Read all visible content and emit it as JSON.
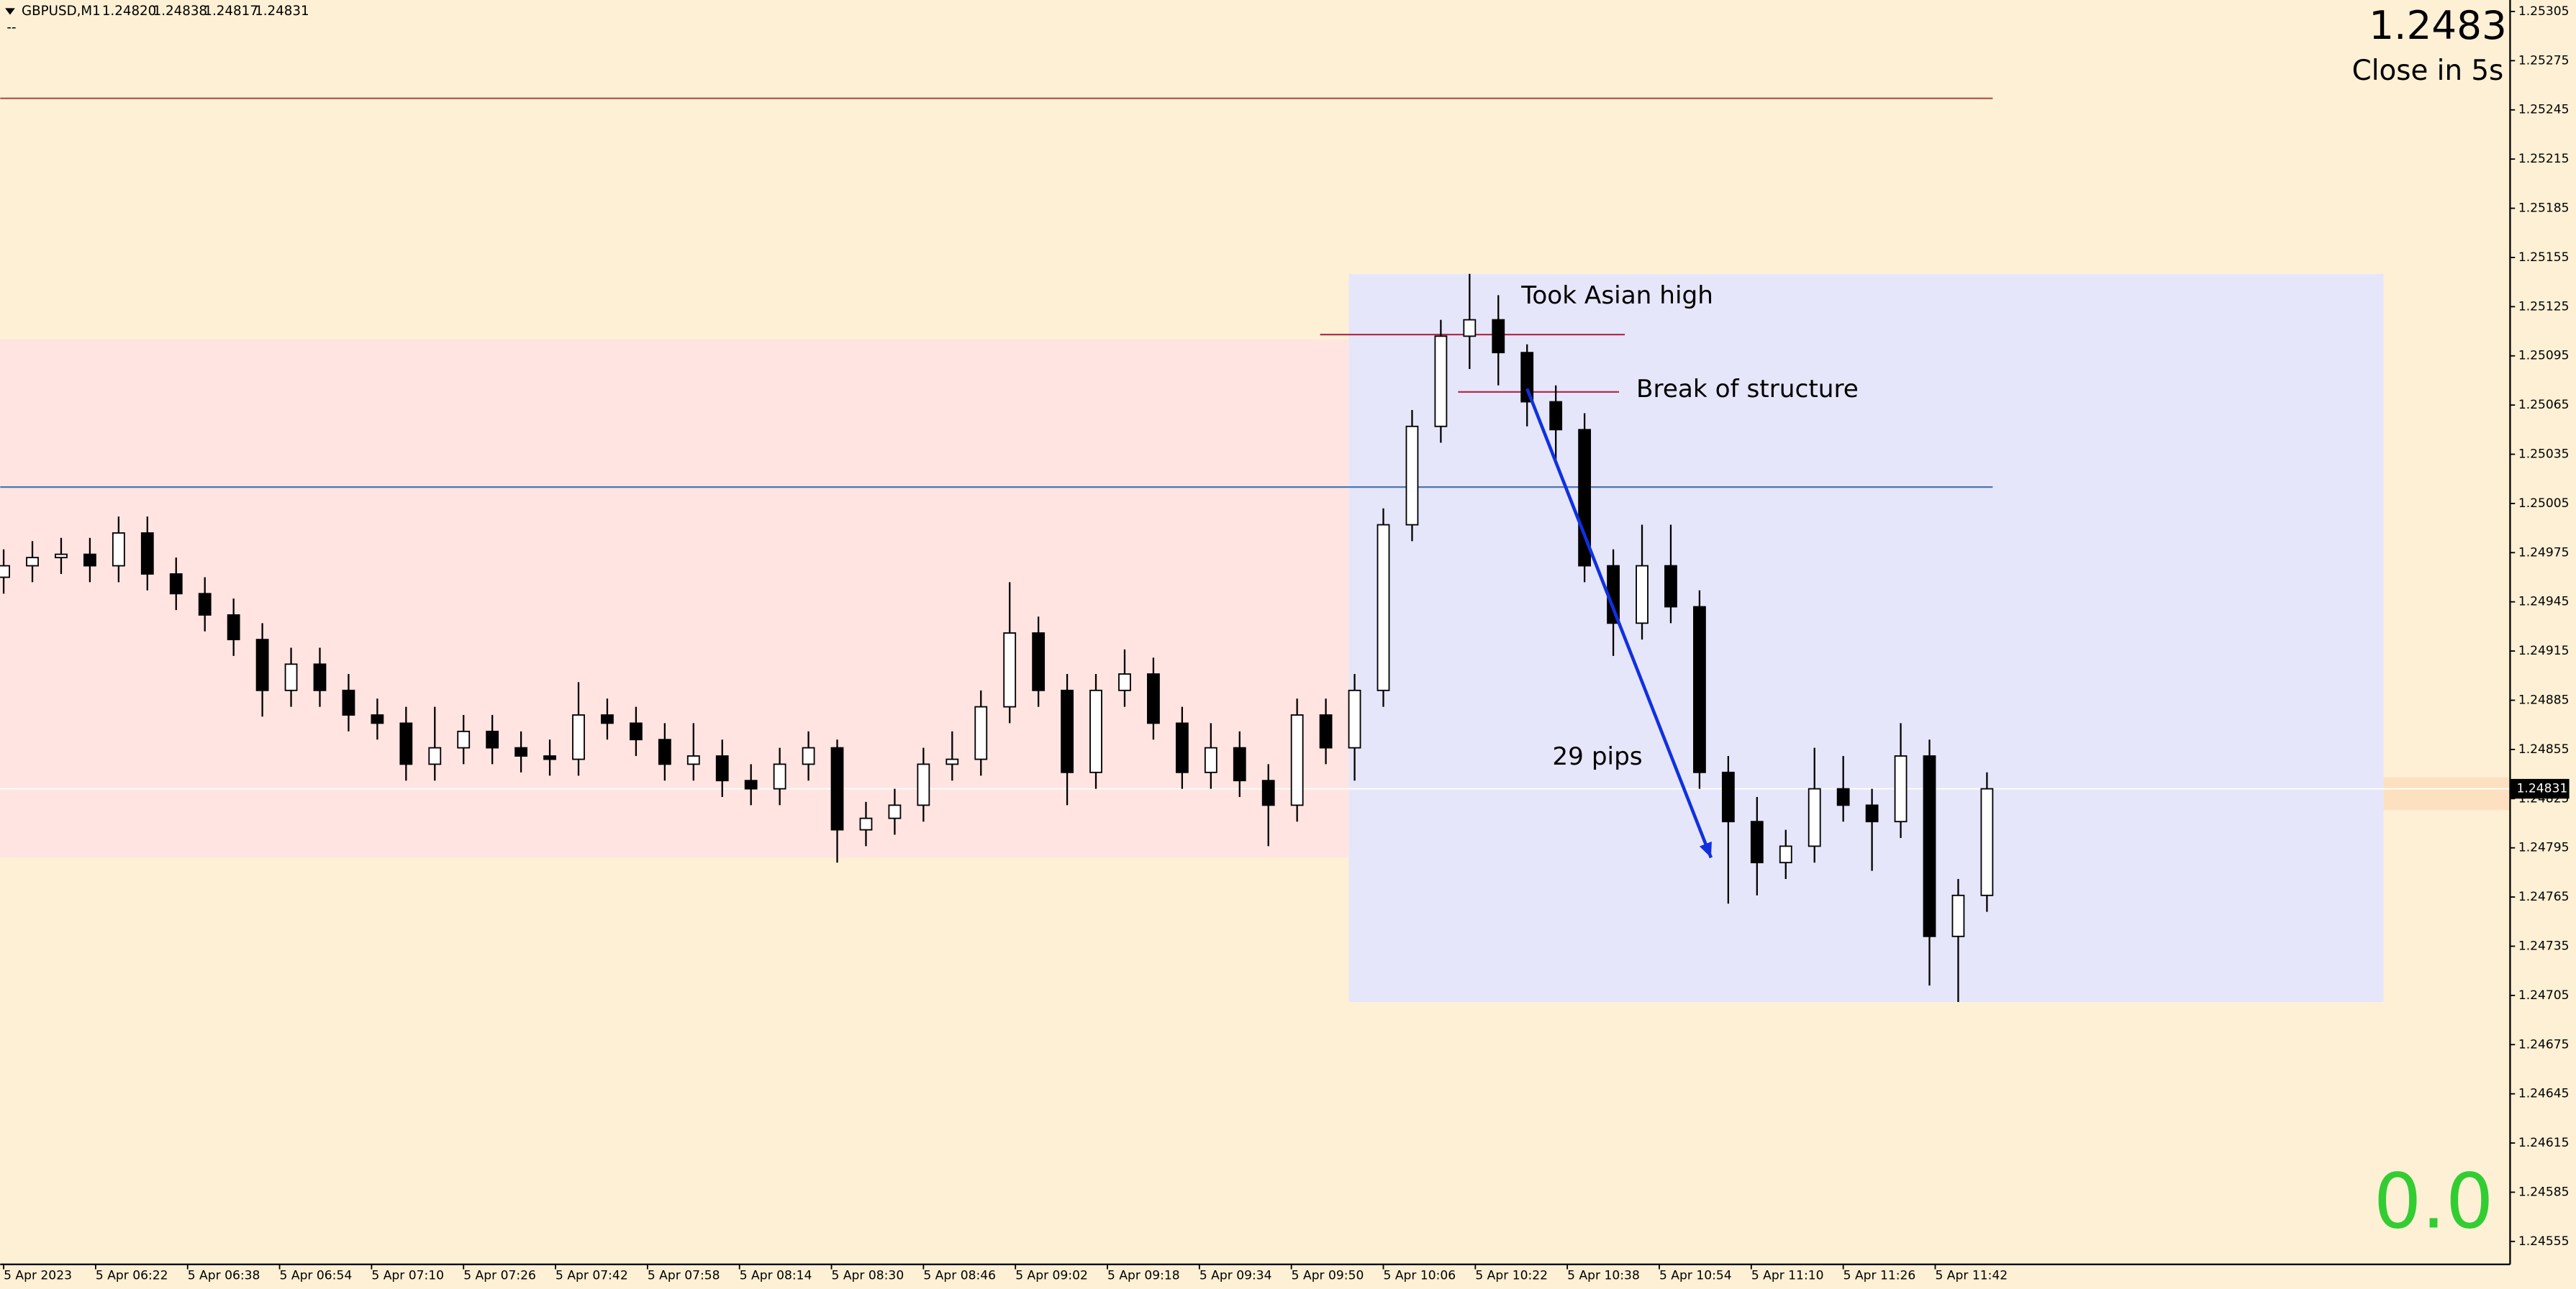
{
  "chart_data": {
    "type": "candlestick",
    "symbol": "GBPUSD,M1",
    "quote": [
      "1.24820",
      "1.24838",
      "1.24817",
      "1.24831"
    ],
    "subtitle": "--",
    "price": 1.2483,
    "countdown": "Close in 5s",
    "counter": "0.0",
    "bid": 1.24831,
    "xlim": [
      -0.6,
      436
    ],
    "ylim": [
      1.24541,
      1.25312
    ],
    "xticks": [
      {
        "value": 0,
        "label": "5 Apr 2023"
      },
      {
        "value": 16,
        "label": "5 Apr 06:22"
      },
      {
        "value": 32,
        "label": "5 Apr 06:38"
      },
      {
        "value": 48,
        "label": "5 Apr 06:54"
      },
      {
        "value": 64,
        "label": "5 Apr 07:10"
      },
      {
        "value": 80,
        "label": "5 Apr 07:26"
      },
      {
        "value": 96,
        "label": "5 Apr 07:42"
      },
      {
        "value": 112,
        "label": "5 Apr 07:58"
      },
      {
        "value": 128,
        "label": "5 Apr 08:14"
      },
      {
        "value": 144,
        "label": "5 Apr 08:30"
      },
      {
        "value": 160,
        "label": "5 Apr 08:46"
      },
      {
        "value": 176,
        "label": "5 Apr 09:02"
      },
      {
        "value": 192,
        "label": "5 Apr 09:18"
      },
      {
        "value": 208,
        "label": "5 Apr 09:34"
      },
      {
        "value": 224,
        "label": "5 Apr 09:50"
      },
      {
        "value": 240,
        "label": "5 Apr 10:06"
      },
      {
        "value": 256,
        "label": "5 Apr 10:22"
      },
      {
        "value": 272,
        "label": "5 Apr 10:38"
      },
      {
        "value": 288,
        "label": "5 Apr 10:54"
      },
      {
        "value": 304,
        "label": "5 Apr 11:10"
      },
      {
        "value": 320,
        "label": "5 Apr 11:26"
      },
      {
        "value": 336,
        "label": "5 Apr 11:42"
      }
    ],
    "yticks": [
      1.25305,
      1.25275,
      1.25245,
      1.25215,
      1.25185,
      1.25155,
      1.25125,
      1.25095,
      1.25065,
      1.25035,
      1.25005,
      1.24975,
      1.24945,
      1.24915,
      1.24885,
      1.24855,
      1.24825,
      1.24795,
      1.24765,
      1.24735,
      1.24705,
      1.24675,
      1.24645,
      1.24615,
      1.24585,
      1.24555
    ],
    "x": [
      0,
      5,
      10,
      15,
      20,
      25,
      30,
      35,
      40,
      45,
      50,
      55,
      60,
      65,
      70,
      75,
      80,
      85,
      90,
      95,
      100,
      105,
      110,
      115,
      120,
      125,
      130,
      135,
      140,
      145,
      150,
      155,
      160,
      165,
      170,
      175,
      180,
      185,
      190,
      195,
      200,
      205,
      210,
      215,
      220,
      225,
      230,
      235,
      240,
      245,
      250,
      255,
      260,
      265,
      270,
      275,
      280,
      285,
      290,
      295,
      300,
      305,
      310,
      315,
      320,
      325,
      330,
      335,
      340,
      345
    ],
    "open": [
      1.2496,
      1.24967,
      1.24972,
      1.24974,
      1.24967,
      1.24987,
      1.24962,
      1.2495,
      1.24937,
      1.24922,
      1.24891,
      1.24907,
      1.24891,
      1.24876,
      1.24871,
      1.24846,
      1.24856,
      1.24866,
      1.24856,
      1.24851,
      1.24849,
      1.24876,
      1.24871,
      1.24861,
      1.24846,
      1.24851,
      1.24836,
      1.24831,
      1.24846,
      1.24856,
      1.24806,
      1.24813,
      1.24821,
      1.24846,
      1.24849,
      1.24881,
      1.24926,
      1.24891,
      1.24841,
      1.24891,
      1.24901,
      1.24871,
      1.24841,
      1.24856,
      1.24836,
      1.24821,
      1.24876,
      1.24856,
      1.24891,
      1.24992,
      1.25052,
      1.25107,
      1.25117,
      1.25097,
      1.25067,
      1.2505,
      1.24967,
      1.24932,
      1.24967,
      1.24942,
      1.24841,
      1.24811,
      1.24786,
      1.24796,
      1.24831,
      1.24821,
      1.24811,
      1.24851,
      1.24741,
      1.24766
    ],
    "high": [
      1.24977,
      1.24982,
      1.24984,
      1.24984,
      1.24997,
      1.24997,
      1.24972,
      1.2496,
      1.24947,
      1.24932,
      1.24917,
      1.24917,
      1.24901,
      1.24886,
      1.24881,
      1.24881,
      1.24876,
      1.24876,
      1.24866,
      1.24861,
      1.24896,
      1.24886,
      1.24881,
      1.24871,
      1.24871,
      1.24861,
      1.24846,
      1.24856,
      1.24866,
      1.24861,
      1.24823,
      1.24831,
      1.24856,
      1.24866,
      1.24891,
      1.24957,
      1.24936,
      1.24901,
      1.24901,
      1.24916,
      1.24911,
      1.24881,
      1.24871,
      1.24866,
      1.24846,
      1.24886,
      1.24886,
      1.24901,
      1.25002,
      1.25062,
      1.25117,
      1.25145,
      1.25132,
      1.25102,
      1.25077,
      1.2506,
      1.24977,
      1.24992,
      1.24992,
      1.24952,
      1.24851,
      1.24826,
      1.24806,
      1.24856,
      1.24851,
      1.24831,
      1.24871,
      1.24861,
      1.24776,
      1.24841
    ],
    "low": [
      1.2495,
      1.24957,
      1.24962,
      1.24957,
      1.24957,
      1.24952,
      1.2494,
      1.24927,
      1.24912,
      1.24875,
      1.24881,
      1.24881,
      1.24866,
      1.24861,
      1.24836,
      1.24836,
      1.24846,
      1.24846,
      1.24841,
      1.24839,
      1.24839,
      1.24861,
      1.24851,
      1.24836,
      1.24836,
      1.24826,
      1.24821,
      1.24821,
      1.24836,
      1.24786,
      1.24796,
      1.24803,
      1.24811,
      1.24836,
      1.24839,
      1.24871,
      1.24881,
      1.24821,
      1.24831,
      1.24881,
      1.24861,
      1.24831,
      1.24831,
      1.24826,
      1.24796,
      1.24811,
      1.24846,
      1.24836,
      1.24881,
      1.24982,
      1.25042,
      1.25087,
      1.25077,
      1.25052,
      1.2503,
      1.24957,
      1.24912,
      1.24922,
      1.24932,
      1.24831,
      1.24761,
      1.24766,
      1.24776,
      1.24786,
      1.24811,
      1.24781,
      1.24801,
      1.24711,
      1.24701,
      1.24756
    ],
    "close": [
      1.24967,
      1.24972,
      1.24974,
      1.24967,
      1.24987,
      1.24962,
      1.2495,
      1.24937,
      1.24922,
      1.24891,
      1.24907,
      1.24891,
      1.24876,
      1.24871,
      1.24846,
      1.24856,
      1.24866,
      1.24856,
      1.24851,
      1.24849,
      1.24876,
      1.24871,
      1.24861,
      1.24846,
      1.24851,
      1.24836,
      1.24831,
      1.24846,
      1.24856,
      1.24806,
      1.24813,
      1.24821,
      1.24846,
      1.24849,
      1.24881,
      1.24926,
      1.24891,
      1.24841,
      1.24891,
      1.24901,
      1.24871,
      1.24841,
      1.24856,
      1.24836,
      1.24821,
      1.24876,
      1.24856,
      1.24891,
      1.24992,
      1.25052,
      1.25107,
      1.25117,
      1.25097,
      1.25067,
      1.2505,
      1.24967,
      1.24932,
      1.24967,
      1.24942,
      1.24841,
      1.24811,
      1.24786,
      1.24796,
      1.24831,
      1.24821,
      1.24811,
      1.24851,
      1.24741,
      1.24766,
      1.24831
    ],
    "up_color": "#ffffff",
    "down_color": "#000000",
    "zones": [
      {
        "x": [
          -0.6,
          234
        ],
        "y": [
          1.24789,
          1.25105
        ],
        "color": "#ffe4e1"
      },
      {
        "x": [
          234,
          414
        ],
        "y": [
          1.24701,
          1.25145
        ],
        "color": "#e6e6fa"
      },
      {
        "x": [
          414,
          436
        ],
        "y": [
          1.24818,
          1.24838
        ],
        "color": "#fde0c0"
      }
    ],
    "lines": [
      {
        "x": [
          -0.6,
          346
        ],
        "y": 1.25252,
        "color": "#b05a4a"
      },
      {
        "x": [
          -0.6,
          346
        ],
        "y": 1.25015,
        "color": "#4a78b0"
      },
      {
        "x": [
          229,
          282
        ],
        "y": 1.25108,
        "color": "#b03050"
      },
      {
        "x": [
          253,
          281
        ],
        "y": 1.25073,
        "color": "#b03050"
      }
    ],
    "arrow": {
      "x": [
        265,
        297
      ],
      "y": [
        1.25075,
        1.24789
      ],
      "color": "#1030e0"
    },
    "annotations": [
      {
        "text": "Took Asian high",
        "x": 264,
        "y": 1.25131
      },
      {
        "text": "Break of structure",
        "x": 284,
        "y": 1.25074
      },
      {
        "text": "29 pips",
        "x": 269.4,
        "y": 1.2485
      }
    ]
  }
}
